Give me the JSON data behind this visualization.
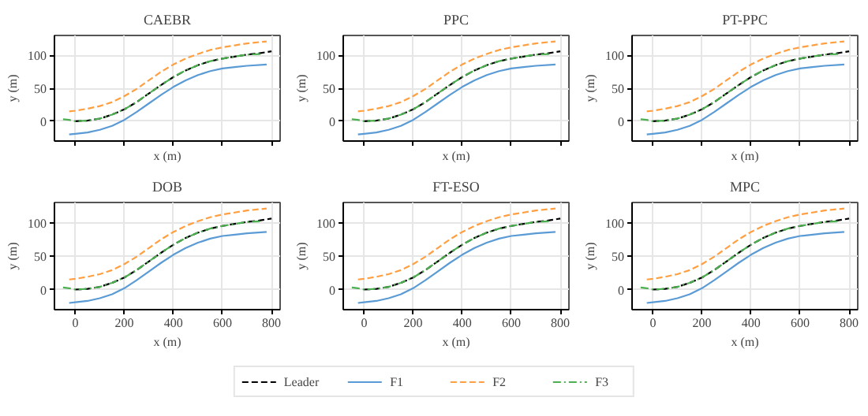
{
  "chart_data": [
    {
      "type": "line",
      "title": "CAEBR",
      "xlabel": "x (m)",
      "ylabel": "y (m)",
      "xlim": [
        -85,
        835
      ],
      "ylim": [
        -30,
        130
      ],
      "xticks": [
        0,
        200,
        400,
        600,
        800
      ],
      "yticks": [
        0,
        50,
        100
      ],
      "grid": true,
      "tick_labels": "y",
      "series": [
        {
          "color": "#000000",
          "line_style": "dashed",
          "x": [
            0,
            50,
            100,
            150,
            200,
            250,
            300,
            350,
            400,
            450,
            500,
            550,
            600,
            650,
            700,
            750,
            800
          ],
          "values": [
            0,
            1,
            4,
            10,
            18,
            29,
            42,
            55,
            67,
            77,
            85,
            91,
            95,
            98,
            101,
            103,
            106
          ]
        },
        {
          "color": "#5b9bd5",
          "line_style": "solid",
          "x": [
            -25,
            0,
            50,
            100,
            150,
            200,
            250,
            300,
            350,
            400,
            450,
            500,
            550,
            600,
            650,
            700,
            780
          ],
          "values": [
            -20,
            -19,
            -17,
            -13,
            -7,
            2,
            14,
            27,
            40,
            52,
            62,
            70,
            76,
            80,
            82,
            84,
            86
          ]
        },
        {
          "color": "#ff9f40",
          "line_style": "dashed",
          "x": [
            -25,
            0,
            50,
            100,
            150,
            200,
            250,
            300,
            350,
            400,
            450,
            500,
            550,
            600,
            650,
            700,
            780
          ],
          "values": [
            15,
            16,
            19,
            23,
            29,
            38,
            49,
            62,
            75,
            86,
            95,
            102,
            108,
            112,
            115,
            118,
            121
          ]
        },
        {
          "color": "#4caf50",
          "line_style": "dashdot",
          "x": [
            -50,
            -25,
            0,
            50,
            100,
            150,
            200,
            250,
            300,
            350,
            400,
            450,
            500,
            550,
            600,
            650,
            700,
            760
          ],
          "values": [
            3,
            2,
            0,
            1,
            4,
            10,
            18,
            29,
            42,
            55,
            67,
            77,
            85,
            91,
            95,
            98,
            101,
            102
          ]
        }
      ]
    },
    {
      "type": "line",
      "title": "PPC",
      "xlabel": "x (m)",
      "ylabel": "y (m)",
      "xlim": [
        -85,
        835
      ],
      "ylim": [
        -30,
        130
      ],
      "xticks": [
        0,
        200,
        400,
        600,
        800
      ],
      "yticks": [
        0,
        50,
        100
      ],
      "grid": true,
      "tick_labels": "y",
      "series": [
        {
          "color": "#000000",
          "line_style": "dashed",
          "x": [
            0,
            50,
            100,
            150,
            200,
            250,
            300,
            350,
            400,
            450,
            500,
            550,
            600,
            650,
            700,
            750,
            800
          ],
          "values": [
            0,
            1,
            4,
            10,
            18,
            29,
            42,
            55,
            67,
            77,
            85,
            91,
            95,
            98,
            101,
            103,
            106
          ]
        },
        {
          "color": "#5b9bd5",
          "line_style": "solid",
          "x": [
            -25,
            0,
            50,
            100,
            150,
            200,
            250,
            300,
            350,
            400,
            450,
            500,
            550,
            600,
            650,
            700,
            780
          ],
          "values": [
            -20,
            -19,
            -17,
            -13,
            -7,
            2,
            14,
            27,
            40,
            52,
            62,
            70,
            76,
            80,
            82,
            84,
            86
          ]
        },
        {
          "color": "#ff9f40",
          "line_style": "dashed",
          "x": [
            -25,
            0,
            50,
            100,
            150,
            200,
            250,
            300,
            350,
            400,
            450,
            500,
            550,
            600,
            650,
            700,
            780
          ],
          "values": [
            15,
            16,
            19,
            23,
            29,
            38,
            49,
            62,
            75,
            86,
            95,
            102,
            108,
            112,
            115,
            118,
            121
          ]
        },
        {
          "color": "#4caf50",
          "line_style": "dashdot",
          "x": [
            -50,
            -25,
            0,
            50,
            100,
            150,
            200,
            250,
            300,
            350,
            400,
            450,
            500,
            550,
            600,
            650,
            700,
            760
          ],
          "values": [
            3,
            2,
            0,
            1,
            4,
            10,
            18,
            29,
            42,
            55,
            67,
            77,
            85,
            91,
            95,
            98,
            101,
            102
          ]
        }
      ]
    },
    {
      "type": "line",
      "title": "PT-PPC",
      "xlabel": "x (m)",
      "ylabel": "y (m)",
      "xlim": [
        -85,
        835
      ],
      "ylim": [
        -30,
        130
      ],
      "xticks": [
        0,
        200,
        400,
        600,
        800
      ],
      "yticks": [
        0,
        50,
        100
      ],
      "grid": true,
      "tick_labels": "y",
      "series": [
        {
          "color": "#000000",
          "line_style": "dashed",
          "x": [
            0,
            50,
            100,
            150,
            200,
            250,
            300,
            350,
            400,
            450,
            500,
            550,
            600,
            650,
            700,
            750,
            800
          ],
          "values": [
            0,
            1,
            4,
            10,
            18,
            29,
            42,
            55,
            67,
            77,
            85,
            91,
            95,
            98,
            101,
            103,
            106
          ]
        },
        {
          "color": "#5b9bd5",
          "line_style": "solid",
          "x": [
            -25,
            0,
            50,
            100,
            150,
            200,
            250,
            300,
            350,
            400,
            450,
            500,
            550,
            600,
            650,
            700,
            780
          ],
          "values": [
            -20,
            -19,
            -17,
            -13,
            -7,
            2,
            14,
            27,
            40,
            52,
            62,
            70,
            76,
            80,
            82,
            84,
            86
          ]
        },
        {
          "color": "#ff9f40",
          "line_style": "dashed",
          "x": [
            -25,
            0,
            50,
            100,
            150,
            200,
            250,
            300,
            350,
            400,
            450,
            500,
            550,
            600,
            650,
            700,
            780
          ],
          "values": [
            15,
            16,
            19,
            23,
            29,
            38,
            49,
            62,
            75,
            86,
            95,
            102,
            108,
            112,
            115,
            118,
            121
          ]
        },
        {
          "color": "#4caf50",
          "line_style": "dashdot",
          "x": [
            -50,
            -25,
            0,
            50,
            100,
            150,
            200,
            250,
            300,
            350,
            400,
            450,
            500,
            550,
            600,
            650,
            700,
            760
          ],
          "values": [
            3,
            2,
            0,
            1,
            4,
            10,
            18,
            29,
            42,
            55,
            67,
            77,
            85,
            91,
            95,
            98,
            101,
            102
          ]
        }
      ]
    },
    {
      "type": "line",
      "title": "DOB",
      "xlabel": "x (m)",
      "ylabel": "y (m)",
      "xlim": [
        -85,
        835
      ],
      "ylim": [
        -30,
        130
      ],
      "xticks": [
        0,
        200,
        400,
        600,
        800
      ],
      "yticks": [
        0,
        50,
        100
      ],
      "grid": true,
      "series": [
        {
          "color": "#000000",
          "line_style": "dashed",
          "x": [
            0,
            50,
            100,
            150,
            200,
            250,
            300,
            350,
            400,
            450,
            500,
            550,
            600,
            650,
            700,
            750,
            800
          ],
          "values": [
            0,
            1,
            4,
            10,
            18,
            29,
            42,
            55,
            67,
            77,
            85,
            91,
            95,
            98,
            101,
            103,
            106
          ]
        },
        {
          "color": "#5b9bd5",
          "line_style": "solid",
          "x": [
            -25,
            0,
            50,
            100,
            150,
            200,
            250,
            300,
            350,
            400,
            450,
            500,
            550,
            600,
            650,
            700,
            780
          ],
          "values": [
            -20,
            -19,
            -17,
            -13,
            -7,
            2,
            14,
            27,
            40,
            52,
            62,
            70,
            76,
            80,
            82,
            84,
            86
          ]
        },
        {
          "color": "#ff9f40",
          "line_style": "dashed",
          "x": [
            -25,
            0,
            50,
            100,
            150,
            200,
            250,
            300,
            350,
            400,
            450,
            500,
            550,
            600,
            650,
            700,
            780
          ],
          "values": [
            15,
            16,
            19,
            23,
            29,
            38,
            49,
            62,
            75,
            86,
            95,
            102,
            108,
            112,
            115,
            118,
            121
          ]
        },
        {
          "color": "#4caf50",
          "line_style": "dashdot",
          "x": [
            -50,
            -25,
            0,
            50,
            100,
            150,
            200,
            250,
            300,
            350,
            400,
            450,
            500,
            550,
            600,
            650,
            700,
            760
          ],
          "values": [
            3,
            2,
            0,
            1,
            4,
            10,
            18,
            29,
            42,
            55,
            67,
            77,
            85,
            91,
            95,
            98,
            101,
            102
          ]
        }
      ]
    },
    {
      "type": "line",
      "title": "FT-ESO",
      "xlabel": "x (m)",
      "ylabel": "y (m)",
      "xlim": [
        -85,
        835
      ],
      "ylim": [
        -30,
        130
      ],
      "xticks": [
        0,
        200,
        400,
        600,
        800
      ],
      "yticks": [
        0,
        50,
        100
      ],
      "grid": true,
      "legend": "bottom",
      "series": [
        {
          "name": "Leader",
          "color": "#000000",
          "line_style": "dashed",
          "x": [
            0,
            50,
            100,
            150,
            200,
            250,
            300,
            350,
            400,
            450,
            500,
            550,
            600,
            650,
            700,
            750,
            800
          ],
          "values": [
            0,
            1,
            4,
            10,
            18,
            29,
            42,
            55,
            67,
            77,
            85,
            91,
            95,
            98,
            101,
            103,
            106
          ]
        },
        {
          "name": "F1",
          "color": "#5b9bd5",
          "line_style": "solid",
          "x": [
            -25,
            0,
            50,
            100,
            150,
            200,
            250,
            300,
            350,
            400,
            450,
            500,
            550,
            600,
            650,
            700,
            780
          ],
          "values": [
            -20,
            -19,
            -17,
            -13,
            -7,
            2,
            14,
            27,
            40,
            52,
            62,
            70,
            76,
            80,
            82,
            84,
            86
          ]
        },
        {
          "name": "F2",
          "color": "#ff9f40",
          "line_style": "dashed",
          "x": [
            -25,
            0,
            50,
            100,
            150,
            200,
            250,
            300,
            350,
            400,
            450,
            500,
            550,
            600,
            650,
            700,
            780
          ],
          "values": [
            15,
            16,
            19,
            23,
            29,
            38,
            49,
            62,
            75,
            86,
            95,
            102,
            108,
            112,
            115,
            118,
            121
          ]
        },
        {
          "name": "F3",
          "color": "#4caf50",
          "line_style": "dashdot",
          "x": [
            -50,
            -25,
            0,
            50,
            100,
            150,
            200,
            250,
            300,
            350,
            400,
            450,
            500,
            550,
            600,
            650,
            700,
            760
          ],
          "values": [
            3,
            2,
            0,
            1,
            4,
            10,
            18,
            29,
            42,
            55,
            67,
            77,
            85,
            91,
            95,
            98,
            101,
            102
          ]
        }
      ]
    },
    {
      "type": "line",
      "title": "MPC",
      "xlabel": "x (m)",
      "ylabel": "y (m)",
      "xlim": [
        -85,
        835
      ],
      "ylim": [
        -30,
        130
      ],
      "xticks": [
        0,
        200,
        400,
        600,
        800
      ],
      "yticks": [
        0,
        50,
        100
      ],
      "grid": true,
      "series": [
        {
          "color": "#000000",
          "line_style": "dashed",
          "x": [
            0,
            50,
            100,
            150,
            200,
            250,
            300,
            350,
            400,
            450,
            500,
            550,
            600,
            650,
            700,
            750,
            800
          ],
          "values": [
            0,
            1,
            4,
            10,
            18,
            29,
            42,
            55,
            67,
            77,
            85,
            91,
            95,
            98,
            101,
            103,
            106
          ]
        },
        {
          "color": "#5b9bd5",
          "line_style": "solid",
          "x": [
            -25,
            0,
            50,
            100,
            150,
            200,
            250,
            300,
            350,
            400,
            450,
            500,
            550,
            600,
            650,
            700,
            780
          ],
          "values": [
            -20,
            -19,
            -17,
            -13,
            -7,
            2,
            14,
            27,
            40,
            52,
            62,
            70,
            76,
            80,
            82,
            84,
            86
          ]
        },
        {
          "color": "#ff9f40",
          "line_style": "dashed",
          "x": [
            -25,
            0,
            50,
            100,
            150,
            200,
            250,
            300,
            350,
            400,
            450,
            500,
            550,
            600,
            650,
            700,
            780
          ],
          "values": [
            15,
            16,
            19,
            23,
            29,
            38,
            49,
            62,
            75,
            86,
            95,
            102,
            108,
            112,
            115,
            118,
            121
          ]
        },
        {
          "color": "#4caf50",
          "line_style": "dashdot",
          "x": [
            -50,
            -25,
            0,
            50,
            100,
            150,
            200,
            250,
            300,
            350,
            400,
            450,
            500,
            550,
            600,
            650,
            700,
            760
          ],
          "values": [
            3,
            2,
            0,
            1,
            4,
            10,
            18,
            29,
            42,
            55,
            67,
            77,
            85,
            91,
            95,
            98,
            101,
            102
          ]
        }
      ]
    }
  ]
}
